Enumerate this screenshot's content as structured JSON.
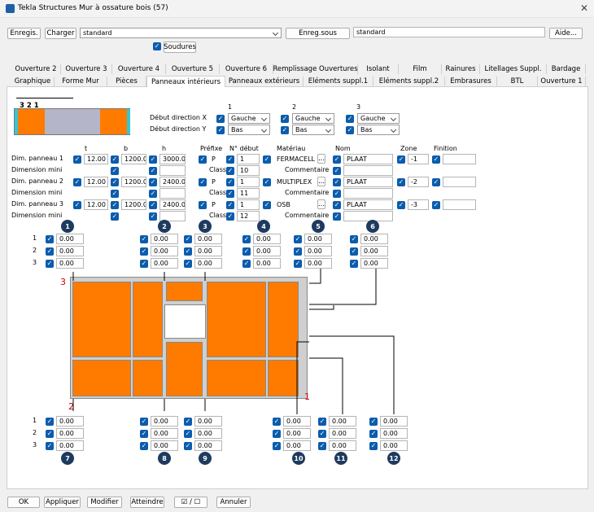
{
  "title": "Tekla Structures  Mur à ossature bois (57)",
  "toolbar": {
    "save": "Enregis.",
    "load": "Charger",
    "preset": "standard",
    "save_as": "Enreg.sous",
    "save_as_name": "standard",
    "help": "Aide...",
    "welds": "Soudures"
  },
  "tabs_row1": [
    "Ouverture 2",
    "Ouverture 3",
    "Ouverture 4",
    "Ouverture 5",
    "Ouverture 6",
    "Remplissage Ouvertures",
    "Isolant",
    "Film",
    "Rainures",
    "Litellages Suppl.",
    "Bardage"
  ],
  "tabs_row2": [
    "Graphique",
    "Forme Mur",
    "Pièces",
    "Panneaux intérieurs",
    "Panneaux extérieurs",
    "Eléments suppl.1",
    "Eléments suppl.2",
    "Embrasures",
    "BTL",
    "Ouverture 1"
  ],
  "preview_labels": "3 2 1",
  "directions": {
    "cols": [
      "1",
      "2",
      "3"
    ],
    "x_label": "Début direction X",
    "y_label": "Début direction Y",
    "x_vals": [
      "Gauche",
      "Gauche",
      "Gauche"
    ],
    "y_vals": [
      "Bas",
      "Bas",
      "Bas"
    ]
  },
  "headers": {
    "t": "t",
    "b": "b",
    "h": "h",
    "prefix": "Préfixe",
    "start": "N° début",
    "material": "Matériau",
    "name": "Nom",
    "zone": "Zone",
    "finish": "Finition"
  },
  "rows": [
    {
      "label": "Dim. panneau 1",
      "t": "12.00",
      "b": "1200.00",
      "h": "3000.00",
      "prefix": "P",
      "start": "1",
      "material": "FERMACELL",
      "name": "PLAAT",
      "zone": "-1",
      "finish": ""
    },
    {
      "label": "Dim. panneau 2",
      "t": "12.00",
      "b": "1200.00",
      "h": "2400.00",
      "prefix": "P",
      "start": "1",
      "material": "MULTIPLEX",
      "name": "PLAAT",
      "zone": "-2",
      "finish": ""
    },
    {
      "label": "Dim. panneau 3",
      "t": "12.00",
      "b": "1200.00",
      "h": "2400.00",
      "prefix": "P",
      "start": "1",
      "material": "OSB",
      "name": "PLAAT",
      "zone": "-3",
      "finish": ""
    }
  ],
  "mini": {
    "label": "Dimension mini",
    "class_label": "Classe",
    "classes": [
      "10",
      "11",
      "12"
    ],
    "comment_label": "Commentaire",
    "dots": "..."
  },
  "grid_rows": [
    "1",
    "2",
    "3"
  ],
  "zero": "0.00",
  "badges_top": [
    "1",
    "2",
    "3",
    "4",
    "5",
    "6"
  ],
  "badges_bottom": [
    "7",
    "8",
    "9",
    "10",
    "11",
    "12"
  ],
  "diagram_markers": {
    "m3": "3",
    "m2": "2",
    "m1": "1"
  },
  "footer": {
    "ok": "OK",
    "apply": "Appliquer",
    "modify": "Modifier",
    "get": "Atteindre",
    "toggle": "☑ / ☐",
    "cancel": "Annuler"
  }
}
